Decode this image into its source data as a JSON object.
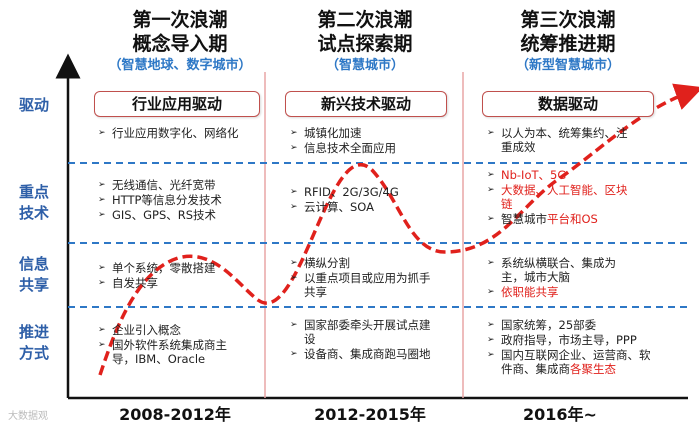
{
  "phases": [
    {
      "title_line1": "第一次浪潮",
      "title_line2": "概念导入期",
      "subtitle": "（智慧地球、数字城市）",
      "driver": "行业应用驱动",
      "years": "2008-2012年",
      "driven_bullets": [
        {
          "parts": [
            {
              "text": "行业应用数字化、网络化",
              "red": false
            }
          ]
        }
      ],
      "tech_bullets": [
        {
          "parts": [
            {
              "text": "无线通信、光纤宽带",
              "red": false
            }
          ]
        },
        {
          "parts": [
            {
              "text": "HTTP等信息分发技术",
              "red": false
            }
          ]
        },
        {
          "parts": [
            {
              "text": "GIS、GPS、RS技术",
              "red": false
            }
          ]
        }
      ],
      "share_bullets": [
        {
          "parts": [
            {
              "text": "单个系统，零散搭建",
              "red": false
            }
          ]
        },
        {
          "parts": [
            {
              "text": "自发共享",
              "red": false
            }
          ]
        }
      ],
      "method_bullets": [
        {
          "parts": [
            {
              "text": "企业引入概念",
              "red": false
            }
          ]
        },
        {
          "parts": [
            {
              "text": "国外软件系统集成商主导，IBM、Oracle",
              "red": false
            }
          ]
        }
      ]
    },
    {
      "title_line1": "第二次浪潮",
      "title_line2": "试点探索期",
      "subtitle": "（智慧城市）",
      "driver": "新兴技术驱动",
      "years": "2012-2015年",
      "driven_bullets": [
        {
          "parts": [
            {
              "text": "城镇化加速",
              "red": false
            }
          ]
        },
        {
          "parts": [
            {
              "text": "信息技术全面应用",
              "red": false
            }
          ]
        }
      ],
      "tech_bullets": [
        {
          "parts": [
            {
              "text": "RFID、2G/3G/4G",
              "red": false
            }
          ]
        },
        {
          "parts": [
            {
              "text": "云计算、SOA",
              "red": false
            }
          ]
        }
      ],
      "share_bullets": [
        {
          "parts": [
            {
              "text": "横纵分割",
              "red": false
            }
          ]
        },
        {
          "parts": [
            {
              "text": "以重点项目或应用为抓手共享",
              "red": false
            }
          ]
        }
      ],
      "method_bullets": [
        {
          "parts": [
            {
              "text": "国家部委牵头开展试点建设",
              "red": false
            }
          ]
        },
        {
          "parts": [
            {
              "text": "设备商、集成商跑马圈地",
              "red": false
            }
          ]
        }
      ]
    },
    {
      "title_line1": "第三次浪潮",
      "title_line2": "统筹推进期",
      "subtitle": "（新型智慧城市）",
      "driver": "数据驱动",
      "years": "2016年~",
      "driven_bullets": [
        {
          "parts": [
            {
              "text": "以人为本、统筹集约、注重成效",
              "red": false
            }
          ]
        }
      ],
      "tech_bullets": [
        {
          "parts": [
            {
              "text": "Nb-IoT、5G",
              "red": true
            }
          ]
        },
        {
          "parts": [
            {
              "text": "大数据、人工智能、区块链",
              "red": true
            }
          ]
        },
        {
          "parts": [
            {
              "text": "智慧城市",
              "red": false
            },
            {
              "text": "平台和OS",
              "red": true
            }
          ]
        }
      ],
      "share_bullets": [
        {
          "parts": [
            {
              "text": "系统纵横联合、集成为主，城市大脑",
              "red": false
            }
          ]
        },
        {
          "parts": [
            {
              "text": "依职能共享",
              "red": true
            }
          ]
        }
      ],
      "method_bullets": [
        {
          "parts": [
            {
              "text": "国家统筹，25部委",
              "red": false
            }
          ]
        },
        {
          "parts": [
            {
              "text": "政府指导，市场主导，PPP",
              "red": false
            }
          ]
        },
        {
          "parts": [
            {
              "text": "国内互联网企业、运营商、软件商、集成商",
              "red": false
            },
            {
              "text": "各聚生态",
              "red": true
            }
          ]
        }
      ]
    }
  ],
  "row_labels": {
    "driven": "驱动",
    "tech": "重点技术",
    "share": "信息共享",
    "method": "推进方式"
  },
  "watermark": "大数据观",
  "colors": {
    "wave": "#e0211c",
    "divider_dashed": "#2e78c6",
    "phase_divider": "#e87b7b",
    "row_label": "#2e5fa8",
    "subtitle": "#2e78c6"
  }
}
